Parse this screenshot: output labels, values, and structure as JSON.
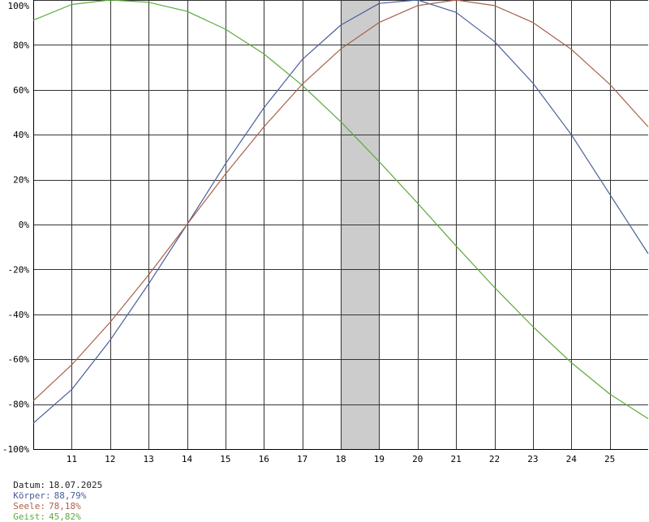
{
  "chart_data": {
    "type": "line",
    "x": [
      10,
      11,
      12,
      13,
      14,
      15,
      16,
      17,
      18,
      19,
      20,
      21,
      22,
      23,
      24,
      25,
      26
    ],
    "x_tick_labels": [
      "11",
      "12",
      "13",
      "14",
      "15",
      "16",
      "17",
      "18",
      "19",
      "20",
      "21",
      "22",
      "23",
      "24",
      "25"
    ],
    "y_tick_labels": [
      "100%",
      "80%",
      "60%",
      "40%",
      "20%",
      "0%",
      "-20%",
      "-40%",
      "-60%",
      "-80%",
      "-100%"
    ],
    "xlim": [
      10,
      26
    ],
    "ylim": [
      -100,
      100
    ],
    "grid": true,
    "highlight": {
      "x_from": 18,
      "x_to": 19,
      "color": "#cccccc"
    },
    "series": [
      {
        "name": "Körper",
        "color": "#4a5e9b",
        "values": [
          -88.5,
          -73.5,
          -51.5,
          -26.5,
          0,
          27,
          52,
          73.5,
          88.8,
          98.5,
          100,
          94.5,
          81.5,
          63,
          40,
          13.5,
          -13
        ]
      },
      {
        "name": "Seele",
        "color": "#a8614b",
        "values": [
          -78.5,
          -62.5,
          -43.5,
          -22.5,
          0,
          22.5,
          43.5,
          62.5,
          78.2,
          90,
          97.5,
          100,
          97.5,
          90,
          78,
          62.5,
          43.5
        ]
      },
      {
        "name": "Geist",
        "color": "#5aaa3c",
        "values": [
          91,
          98,
          100,
          99,
          95,
          87,
          76,
          62,
          45.8,
          28,
          9.5,
          -9.5,
          -28,
          -45.5,
          -61.5,
          -75.5,
          -86.5
        ]
      }
    ]
  },
  "status": {
    "date_label": "Datum:",
    "date_value": "18.07.2025",
    "koerper_label": "Körper:",
    "koerper_value": "88,79%",
    "seele_label": "Seele:",
    "seele_value": "78,18%",
    "geist_label": "Geist:",
    "geist_value": "45,82%",
    "date_color": "#222222",
    "koerper_color": "#4a5e9b",
    "seele_color": "#a8614b",
    "geist_color": "#5aaa3c"
  }
}
